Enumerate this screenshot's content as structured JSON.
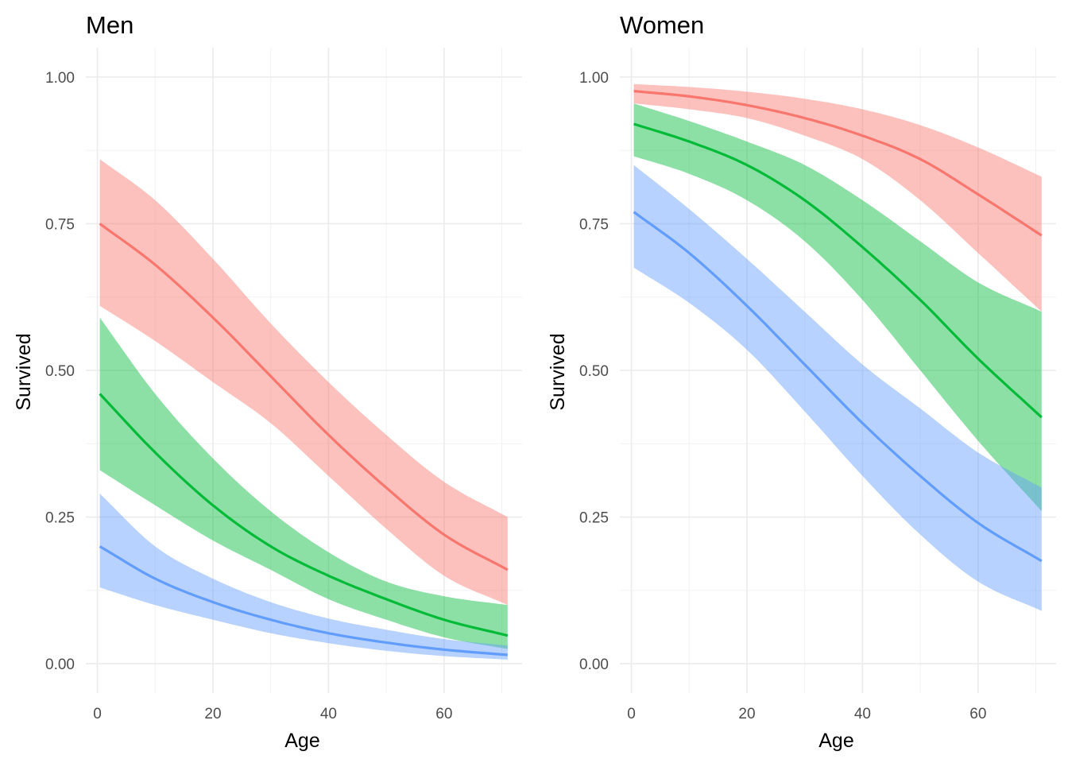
{
  "chart_data": [
    {
      "type": "line",
      "title": "Men",
      "xlabel": "Age",
      "ylabel": "Survived",
      "xlim": [
        -2,
        73.5
      ],
      "ylim": [
        -0.05,
        1.05
      ],
      "x_ticks": [
        0,
        20,
        40,
        60
      ],
      "x_tick_labels": [
        "0",
        "20",
        "40",
        "60"
      ],
      "y_ticks": [
        0,
        0.25,
        0.5,
        0.75,
        1
      ],
      "y_tick_labels": [
        "0.00",
        "0.25",
        "0.50",
        "0.75",
        "1.00"
      ],
      "grid": true,
      "legend": "none",
      "x": [
        0.42,
        10,
        20,
        30,
        40,
        50,
        60,
        71
      ],
      "series": [
        {
          "color": "#F8766D",
          "values": [
            0.75,
            0.68,
            0.59,
            0.49,
            0.39,
            0.3,
            0.22,
            0.16
          ],
          "lower": [
            0.61,
            0.55,
            0.48,
            0.41,
            0.32,
            0.23,
            0.15,
            0.1
          ],
          "upper": [
            0.86,
            0.79,
            0.69,
            0.58,
            0.48,
            0.39,
            0.31,
            0.25
          ]
        },
        {
          "color": "#00BA38",
          "values": [
            0.46,
            0.36,
            0.27,
            0.2,
            0.15,
            0.11,
            0.075,
            0.048
          ],
          "lower": [
            0.33,
            0.27,
            0.21,
            0.16,
            0.11,
            0.075,
            0.045,
            0.025
          ],
          "upper": [
            0.59,
            0.46,
            0.35,
            0.26,
            0.19,
            0.14,
            0.115,
            0.1
          ]
        },
        {
          "color": "#619CFF",
          "values": [
            0.2,
            0.145,
            0.105,
            0.075,
            0.052,
            0.036,
            0.024,
            0.015
          ],
          "lower": [
            0.13,
            0.1,
            0.075,
            0.052,
            0.035,
            0.022,
            0.013,
            0.007
          ],
          "upper": [
            0.29,
            0.2,
            0.145,
            0.105,
            0.077,
            0.058,
            0.042,
            0.031
          ]
        }
      ]
    },
    {
      "type": "line",
      "title": "Women",
      "xlabel": "Age",
      "ylabel": "Survived",
      "xlim": [
        -2,
        73.5
      ],
      "ylim": [
        -0.05,
        1.05
      ],
      "x_ticks": [
        0,
        20,
        40,
        60
      ],
      "x_tick_labels": [
        "0",
        "20",
        "40",
        "60"
      ],
      "y_ticks": [
        0,
        0.25,
        0.5,
        0.75,
        1
      ],
      "y_tick_labels": [
        "0.00",
        "0.25",
        "0.50",
        "0.75",
        "1.00"
      ],
      "grid": true,
      "legend": "none",
      "x": [
        0.42,
        10,
        20,
        30,
        40,
        50,
        60,
        71
      ],
      "series": [
        {
          "color": "#F8766D",
          "values": [
            0.976,
            0.967,
            0.952,
            0.93,
            0.9,
            0.86,
            0.8,
            0.73
          ],
          "lower": [
            0.955,
            0.945,
            0.93,
            0.9,
            0.86,
            0.79,
            0.7,
            0.6
          ],
          "upper": [
            0.988,
            0.983,
            0.975,
            0.963,
            0.945,
            0.918,
            0.88,
            0.83
          ]
        },
        {
          "color": "#00BA38",
          "values": [
            0.92,
            0.89,
            0.85,
            0.79,
            0.71,
            0.62,
            0.52,
            0.42
          ],
          "lower": [
            0.865,
            0.835,
            0.79,
            0.72,
            0.62,
            0.5,
            0.38,
            0.26
          ],
          "upper": [
            0.955,
            0.925,
            0.89,
            0.85,
            0.79,
            0.72,
            0.65,
            0.6
          ]
        },
        {
          "color": "#619CFF",
          "values": [
            0.77,
            0.7,
            0.61,
            0.51,
            0.41,
            0.32,
            0.24,
            0.175
          ],
          "lower": [
            0.675,
            0.615,
            0.535,
            0.43,
            0.32,
            0.22,
            0.14,
            0.09
          ],
          "upper": [
            0.85,
            0.775,
            0.69,
            0.6,
            0.51,
            0.435,
            0.36,
            0.3
          ]
        }
      ]
    }
  ]
}
